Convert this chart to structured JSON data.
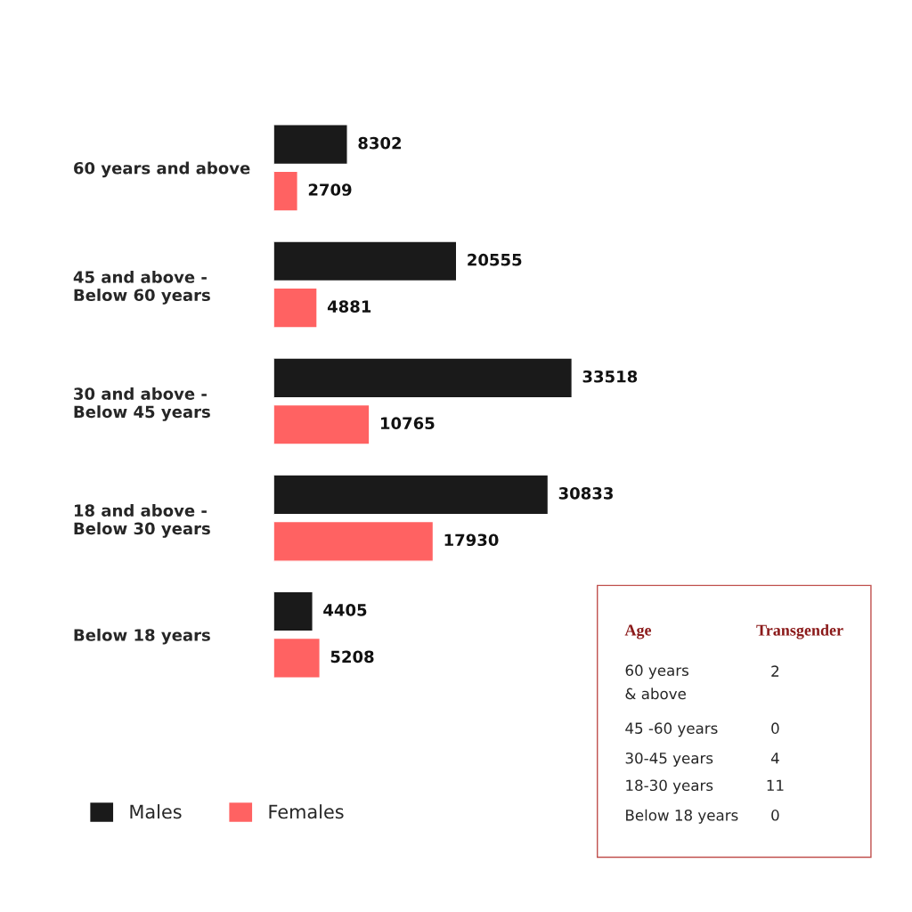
{
  "chart_data": [
    {
      "type": "bar",
      "orientation": "horizontal",
      "categories": [
        "60 years and above",
        "45 and above -\nBelow 60 years",
        "30 and above -\nBelow 45 years",
        "18 and above -\nBelow 30 years",
        "Below 18 years"
      ],
      "series": [
        {
          "name": "Males",
          "color": "#1a1a1a",
          "values": [
            8302,
            20555,
            33518,
            30833,
            4405
          ]
        },
        {
          "name": "Females",
          "color": "#ff6262",
          "values": [
            2709,
            4881,
            10765,
            17930,
            5208
          ]
        }
      ],
      "data_labels": true,
      "tick_labels": "y",
      "legend": "bottom left"
    },
    {
      "type": "other",
      "annotations": [
        "Age",
        "Transgender"
      ],
      "categories": [
        "60 years\n& above",
        "45 -60 years",
        "30-45 years",
        "18-30 years",
        "Below 18 years"
      ],
      "values": [
        2,
        0,
        4,
        11,
        0
      ],
      "data_labels": true
    }
  ]
}
